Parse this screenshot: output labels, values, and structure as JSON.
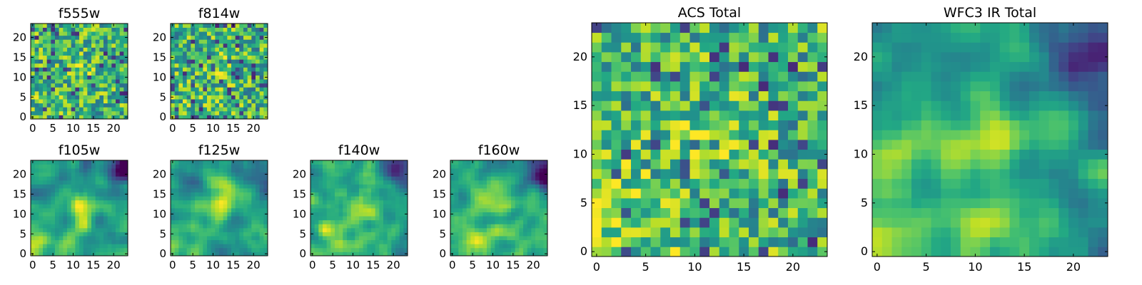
{
  "figure": {
    "colormap": "viridis",
    "background": "#ffffff"
  },
  "chart_data": [
    {
      "type": "heatmap",
      "title": "f555w",
      "grid_size": [
        24,
        24
      ],
      "xlim": [
        -0.5,
        23.5
      ],
      "ylim": [
        -0.5,
        23.5
      ],
      "xticks": [
        0,
        5,
        10,
        15,
        20
      ],
      "yticks": [
        0,
        5,
        10,
        15,
        20
      ],
      "origin": "lower",
      "color_level_mean": 0.62,
      "texture": "noisy pixel-level scatter"
    },
    {
      "type": "heatmap",
      "title": "f814w",
      "grid_size": [
        24,
        24
      ],
      "xlim": [
        -0.5,
        23.5
      ],
      "ylim": [
        -0.5,
        23.5
      ],
      "xticks": [
        0,
        5,
        10,
        15,
        20
      ],
      "yticks": [
        0,
        5,
        10,
        15,
        20
      ],
      "origin": "lower",
      "color_level_mean": 0.63,
      "texture": "noisy, faint bright patch near center"
    },
    {
      "type": "heatmap",
      "title": "f105w",
      "grid_size": [
        24,
        24
      ],
      "xlim": [
        -0.5,
        23.5
      ],
      "ylim": [
        -0.5,
        23.5
      ],
      "xticks": [
        0,
        5,
        10,
        15,
        20
      ],
      "yticks": [
        0,
        5,
        10,
        15,
        20
      ],
      "origin": "lower",
      "color_level_mean": 0.6,
      "texture": "smooth blobs, dark upper-right corner"
    },
    {
      "type": "heatmap",
      "title": "f125w",
      "grid_size": [
        24,
        24
      ],
      "xlim": [
        -0.5,
        23.5
      ],
      "ylim": [
        -0.5,
        23.5
      ],
      "xticks": [
        0,
        5,
        10,
        15,
        20
      ],
      "yticks": [
        0,
        5,
        10,
        15,
        20
      ],
      "origin": "lower",
      "color_level_mean": 0.6,
      "texture": "smooth blobs, bright central source"
    },
    {
      "type": "heatmap",
      "title": "f140w",
      "grid_size": [
        24,
        24
      ],
      "xlim": [
        -0.5,
        23.5
      ],
      "ylim": [
        -0.5,
        23.5
      ],
      "xticks": [
        0,
        5,
        10,
        15,
        20
      ],
      "yticks": [
        0,
        5,
        10,
        15,
        20
      ],
      "origin": "lower",
      "color_level_mean": 0.58,
      "texture": "smooth blobs, dark upper-right corner"
    },
    {
      "type": "heatmap",
      "title": "f160w",
      "grid_size": [
        24,
        24
      ],
      "xlim": [
        -0.5,
        23.5
      ],
      "ylim": [
        -0.5,
        23.5
      ],
      "xticks": [
        0,
        5,
        10,
        15,
        20
      ],
      "yticks": [
        0,
        5,
        10,
        15,
        20
      ],
      "origin": "lower",
      "color_level_mean": 0.58,
      "texture": "smooth blobs, dark upper-right corner"
    },
    {
      "type": "heatmap",
      "title": "ACS Total",
      "grid_size": [
        24,
        24
      ],
      "xlim": [
        -0.5,
        23.5
      ],
      "ylim": [
        -0.5,
        23.5
      ],
      "xticks": [
        0,
        5,
        10,
        15,
        20
      ],
      "yticks": [
        0,
        5,
        10,
        15,
        20
      ],
      "origin": "lower",
      "color_level_mean": 0.64,
      "texture": "noisy, bright center near (12,12), bright lower-left"
    },
    {
      "type": "heatmap",
      "title": "WFC3 IR Total",
      "grid_size": [
        24,
        24
      ],
      "xlim": [
        -0.5,
        23.5
      ],
      "ylim": [
        -0.5,
        23.5
      ],
      "xticks": [
        0,
        5,
        10,
        15,
        20
      ],
      "yticks": [
        0,
        5,
        10,
        15,
        20
      ],
      "origin": "lower",
      "color_level_mean": 0.6,
      "texture": "smooth, bright center near (12,12), bright lower-left, dark upper-right"
    }
  ]
}
